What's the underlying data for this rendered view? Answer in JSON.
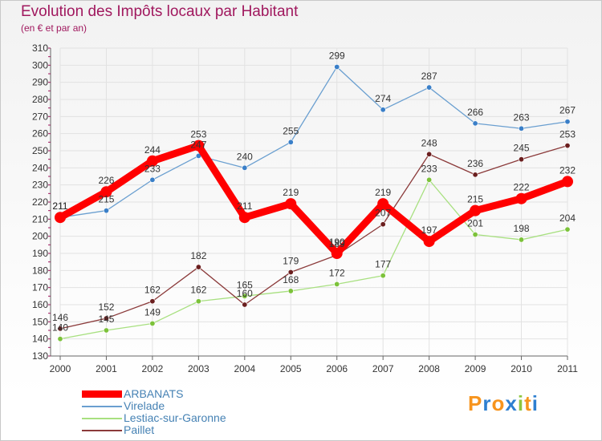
{
  "title": "Evolution des Impôts locaux par Habitant",
  "subtitle": "(en € et par an)",
  "logo": {
    "letters": [
      "P",
      "r",
      "o",
      "x",
      "i",
      "t",
      "i"
    ],
    "colors": [
      "#f7941d",
      "#2e7fd0",
      "#f7941d",
      "#2e7fd0",
      "#8dc63f",
      "#f7941d",
      "#2e7fd0"
    ]
  },
  "chart_data": {
    "type": "line",
    "title": "Evolution des Impôts locaux par Habitant",
    "subtitle": "(en € et par an)",
    "xlabel": "",
    "ylabel": "",
    "categories": [
      "2000",
      "2001",
      "2002",
      "2003",
      "2004",
      "2005",
      "2006",
      "2007",
      "2008",
      "2009",
      "2010",
      "2011"
    ],
    "ylim": [
      130,
      310
    ],
    "yticks": [
      130,
      140,
      150,
      160,
      170,
      180,
      190,
      200,
      210,
      220,
      230,
      240,
      250,
      260,
      270,
      280,
      290,
      300,
      310
    ],
    "grid": true,
    "legend_position": "bottom-left",
    "series": [
      {
        "name": "ARBANATS",
        "values": [
          211,
          226,
          244,
          253,
          211,
          219,
          190,
          219,
          197,
          215,
          222,
          232
        ],
        "color": "#ff0000",
        "point_color": "#ff0000",
        "width": "thick"
      },
      {
        "name": "Virelade",
        "values": [
          211,
          215,
          233,
          247,
          240,
          255,
          299,
          274,
          287,
          266,
          263,
          267
        ],
        "color": "#6a9fd0",
        "point_color": "#3a7fc8",
        "width": "thin"
      },
      {
        "name": "Lestiac-sur-Garonne",
        "values": [
          140,
          145,
          149,
          162,
          165,
          168,
          172,
          177,
          233,
          201,
          198,
          204
        ],
        "color": "#a8e080",
        "point_color": "#7cc23a",
        "width": "thin"
      },
      {
        "name": "Paillet",
        "values": [
          146,
          152,
          162,
          182,
          160,
          179,
          189,
          207,
          248,
          236,
          245,
          253
        ],
        "color": "#8b3a3a",
        "point_color": "#6b1f1f",
        "width": "thin"
      }
    ]
  }
}
